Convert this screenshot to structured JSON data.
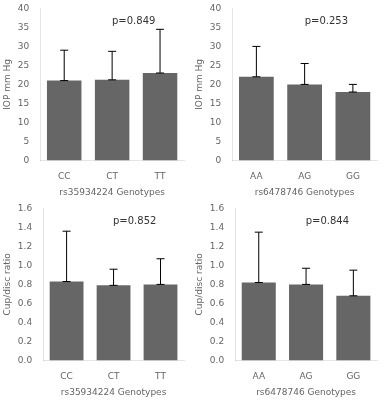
{
  "chart_data": [
    {
      "type": "bar",
      "categories": [
        "CC",
        "CT",
        "TT"
      ],
      "values": [
        21.0,
        21.2,
        23.0
      ],
      "errors_up": [
        8.0,
        7.5,
        11.5
      ],
      "errors_down": [
        0,
        0,
        0
      ],
      "color": "#666666",
      "ylabel": "IOP mm Hg",
      "xlabel": "rs35934224 Genotypes",
      "annotation": "p=0.849",
      "ylim": [
        0,
        40
      ],
      "yticks": [
        0,
        5,
        10,
        15,
        20,
        25,
        30,
        35,
        40
      ],
      "grid": false
    },
    {
      "type": "bar",
      "categories": [
        "AA",
        "AG",
        "GG"
      ],
      "values": [
        22.0,
        20.0,
        18.0
      ],
      "errors_up": [
        8.0,
        5.5,
        2.0
      ],
      "errors_down": [
        0,
        0,
        0
      ],
      "color": "#666666",
      "ylabel": "IOP mm Hg",
      "xlabel": "rs6478746 Genotypes",
      "annotation": "p=0.253",
      "ylim": [
        0,
        40
      ],
      "yticks": [
        0,
        5,
        10,
        15,
        20,
        25,
        30,
        35,
        40
      ],
      "grid": false
    },
    {
      "type": "bar",
      "categories": [
        "CC",
        "CT",
        "TT"
      ],
      "values": [
        0.83,
        0.79,
        0.8
      ],
      "errors_up": [
        0.53,
        0.17,
        0.27
      ],
      "errors_down": [
        0,
        0,
        0
      ],
      "color": "#666666",
      "ylabel": "Cup/disc ratio",
      "xlabel": "rs35934224 Genotypes",
      "annotation": "p=0.852",
      "ylim": [
        0,
        1.6
      ],
      "yticks": [
        {
          "value": 0,
          "label": "0.0"
        },
        0.2,
        0.4,
        0.6,
        0.8,
        {
          "value": 1.0,
          "label": "1.0"
        },
        1.2,
        1.4,
        1.6
      ],
      "grid": false
    },
    {
      "type": "bar",
      "categories": [
        "AA",
        "AG",
        "GG"
      ],
      "values": [
        0.82,
        0.8,
        0.68
      ],
      "errors_up": [
        0.53,
        0.17,
        0.27
      ],
      "errors_down": [
        0,
        0,
        0
      ],
      "color": "#666666",
      "ylabel": "Cup/disc ratio",
      "xlabel": "rs6478746 Genotypes",
      "annotation": "p=0.844",
      "ylim": [
        0,
        1.6
      ],
      "yticks": [
        {
          "value": 0,
          "label": "0.0"
        },
        0.2,
        0.4,
        0.6,
        0.8,
        {
          "value": 1.0,
          "label": "1.0"
        },
        1.2,
        1.4,
        1.6
      ],
      "grid": false
    }
  ]
}
